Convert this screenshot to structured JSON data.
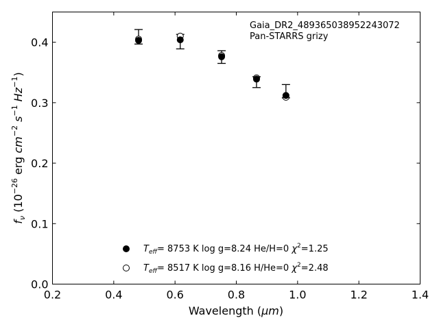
{
  "chart_data": {
    "type": "scatter",
    "xlim": [
      0.2,
      1.4
    ],
    "ylim": [
      0.0,
      0.45
    ],
    "x_ticks": [
      0.2,
      0.4,
      0.6,
      0.8,
      1.0,
      1.2,
      1.4
    ],
    "y_ticks": [
      0.0,
      0.1,
      0.2,
      0.3,
      0.4
    ],
    "x_tick_labels": [
      "0.2",
      "0.4",
      "0.6",
      "0.8",
      "1.0",
      "1.2",
      "1.4"
    ],
    "y_tick_labels": [
      "0.0",
      "0.1",
      "0.2",
      "0.3",
      "0.4"
    ],
    "grid": false,
    "annotation": {
      "line1": "Gaia_DR2_489365038952243072",
      "line2": "Pan-STARRS grizy"
    },
    "legend": {
      "placement": "lower-center",
      "entries": [
        {
          "marker": "filled",
          "teff_value": "8753 K",
          "logg": "log g=8.24",
          "comp": "He/H=0",
          "chi2": "=1.25"
        },
        {
          "marker": "open",
          "teff_value": "8517 K",
          "logg": "log g=8.16",
          "comp": "H/He=0",
          "chi2": "=2.48"
        }
      ]
    },
    "observed": {
      "x": [
        0.481,
        0.617,
        0.752,
        0.866,
        0.962
      ],
      "y": [
        0.403,
        0.404,
        0.376,
        0.339,
        0.312
      ],
      "yerr_upper": [
        0.421,
        0.413,
        0.386,
        0.343,
        0.33
      ],
      "yerr_lower": [
        0.397,
        0.389,
        0.365,
        0.325,
        0.308
      ]
    },
    "model_open": {
      "x": [
        0.481,
        0.617,
        0.752,
        0.866,
        0.962
      ],
      "y": [
        0.405,
        0.41,
        0.378,
        0.341,
        0.309
      ]
    },
    "xlabel_main": "Wavelength (",
    "xlabel_unit": "μm",
    "xlabel_close": ")",
    "ylabel": {
      "f": "f",
      "nu": "ν",
      "open": " (10",
      "exp26": "−26",
      "erg": " erg ",
      "cm": "cm",
      "exp2": "−2",
      "s": " s",
      "exp1a": "−1",
      "hz": " Hz",
      "exp1b": "−1",
      "close": ")"
    }
  }
}
